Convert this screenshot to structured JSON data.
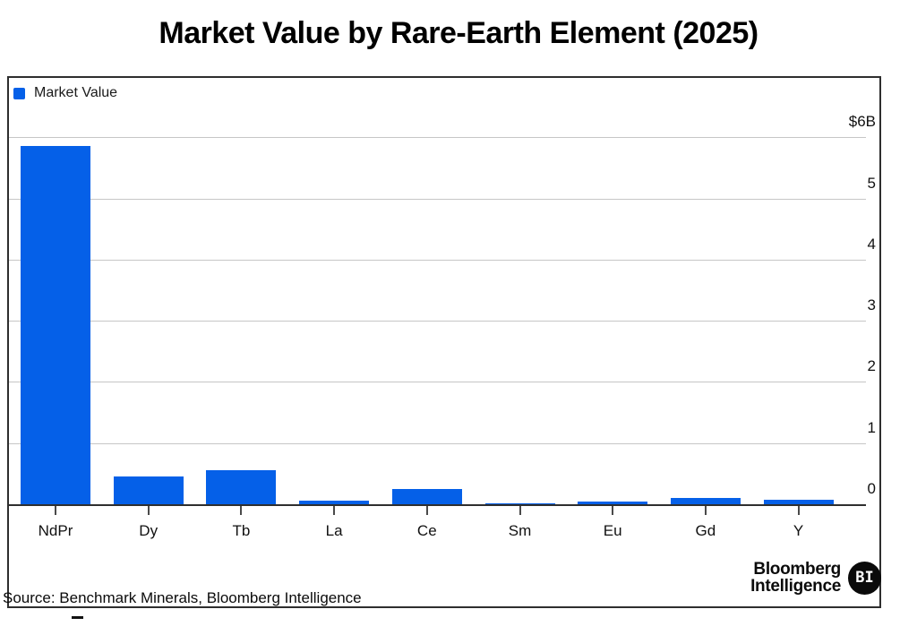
{
  "title": "Market Value by Rare-Earth Element (2025)",
  "legend": {
    "label": "Market Value",
    "swatch_color": "#0560e8"
  },
  "chart_data": {
    "type": "bar",
    "title": "Market Value by Rare-Earth Element (2025)",
    "series_name": "Market Value",
    "categories": [
      "NdPr",
      "Dy",
      "Tb",
      "La",
      "Ce",
      "Sm",
      "Eu",
      "Gd",
      "Y"
    ],
    "values": [
      5.85,
      0.45,
      0.55,
      0.06,
      0.25,
      0.02,
      0.04,
      0.1,
      0.07
    ],
    "unit": "USD billions",
    "xlabel": "",
    "ylabel": "",
    "ylim": [
      0,
      6
    ],
    "yticks": [
      0,
      1,
      2,
      3,
      4,
      5,
      6
    ],
    "ytick_labels": [
      "0",
      "1",
      "2",
      "3",
      "4",
      "5",
      "$6B"
    ],
    "grid": true,
    "legend_position": "top-left",
    "ytick_side": "right",
    "bar_color": "#0560e8"
  },
  "footer": {
    "source": "Source: Benchmark Minerals, Bloomberg Intelligence"
  },
  "branding": {
    "line1": "Bloomberg",
    "line2": "Intelligence",
    "badge": "BI"
  },
  "colors": {
    "bar": "#0560e8",
    "gridline": "#c6c6c6",
    "axis": "#2f2f2f",
    "frame_border": "#2e2e2e",
    "badge_bg": "#0a0a0a",
    "badge_text": "#ffffff"
  }
}
